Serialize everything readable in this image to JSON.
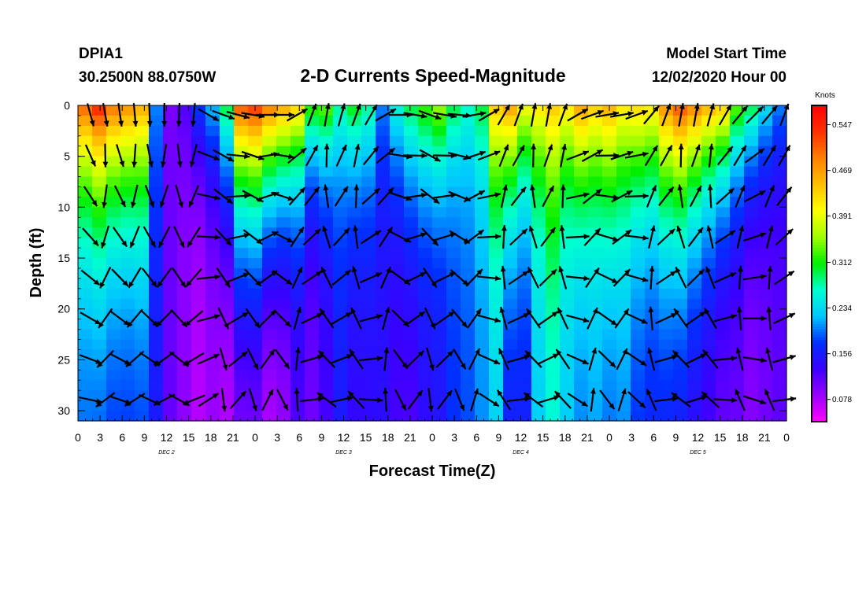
{
  "header": {
    "station_id": "DPIA1",
    "station_coords": "30.2500N 88.0750W",
    "model_start_label": "Model Start Time",
    "model_start_value": "12/02/2020 Hour 00"
  },
  "chart_data": {
    "type": "heatmap",
    "title": "2-D Currents Speed-Magnitude",
    "xlabel": "Forecast Time(Z)",
    "ylabel": "Depth (ft)",
    "x_range_hours": [
      0,
      96
    ],
    "y_range_ft": [
      0,
      31
    ],
    "x_tick_labels": [
      "0",
      "3",
      "6",
      "9",
      "12",
      "15",
      "18",
      "21",
      "0",
      "3",
      "6",
      "9",
      "12",
      "15",
      "18",
      "21",
      "0",
      "3",
      "6",
      "9",
      "12",
      "15",
      "18",
      "21",
      "0",
      "3",
      "6",
      "9",
      "12",
      "15",
      "18",
      "21",
      "0"
    ],
    "y_ticks": [
      0,
      5,
      10,
      15,
      20,
      25,
      30
    ],
    "day_labels": [
      {
        "label": "DEC 2",
        "hour": 12
      },
      {
        "label": "DEC 3",
        "hour": 36
      },
      {
        "label": "DEC 4",
        "hour": 60
      },
      {
        "label": "DEC 5",
        "hour": 84
      }
    ],
    "colorbar": {
      "unit": "Knots",
      "range": [
        0.04,
        0.58
      ],
      "tick_values": [
        0.547,
        0.469,
        0.391,
        0.312,
        0.234,
        0.156,
        0.078
      ],
      "tick_labels": [
        "0.547",
        "0.469",
        "0.391",
        "0.312",
        "0.234",
        "0.156",
        "0.078"
      ]
    },
    "colors": {
      "stops": [
        "#ff00ff",
        "#9a00ff",
        "#3a00ff",
        "#0030ff",
        "#00c8ff",
        "#00ffd0",
        "#00f000",
        "#a0ff00",
        "#ffff00",
        "#ffc000",
        "#ff8000",
        "#ff3000",
        "#ff0000"
      ]
    },
    "speed_profile": {
      "surface_knots": [
        0.51,
        0.55,
        0.5,
        0.48,
        0.46,
        0.2,
        0.1,
        0.12,
        0.18,
        0.22,
        0.3,
        0.52,
        0.54,
        0.5,
        0.47,
        0.44,
        0.33,
        0.34,
        0.28,
        0.31,
        0.28,
        0.2,
        0.26,
        0.3,
        0.33,
        0.36,
        0.3,
        0.27,
        0.3,
        0.44,
        0.47,
        0.4,
        0.42,
        0.44,
        0.42,
        0.47,
        0.44,
        0.46,
        0.42,
        0.43,
        0.42,
        0.48,
        0.52,
        0.49,
        0.46,
        0.44,
        0.34,
        0.3,
        0.24,
        0.2
      ],
      "bottom_knots": [
        0.18,
        0.17,
        0.16,
        0.16,
        0.16,
        0.15,
        0.11,
        0.09,
        0.07,
        0.08,
        0.06,
        0.07,
        0.07,
        0.05,
        0.07,
        0.11,
        0.1,
        0.12,
        0.15,
        0.13,
        0.13,
        0.14,
        0.12,
        0.11,
        0.13,
        0.14,
        0.17,
        0.18,
        0.2,
        0.22,
        0.14,
        0.15,
        0.22,
        0.25,
        0.22,
        0.19,
        0.2,
        0.18,
        0.19,
        0.16,
        0.15,
        0.14,
        0.13,
        0.12,
        0.11,
        0.1,
        0.1,
        0.09,
        0.1,
        0.11
      ],
      "decay_depth_ft": [
        10,
        11,
        11,
        11,
        12,
        12,
        8,
        8,
        8,
        9,
        11,
        12,
        12,
        11,
        10,
        9,
        8,
        8,
        9,
        9,
        10,
        8,
        9,
        11,
        10,
        9,
        8,
        9,
        9,
        10,
        11,
        10,
        9,
        10,
        9,
        10,
        10,
        11,
        11,
        11,
        11,
        12,
        12,
        11,
        10,
        9,
        9,
        8,
        8,
        8
      ]
    },
    "vectors": {
      "hours": [
        0,
        2,
        4,
        6,
        8,
        10,
        12,
        14,
        16,
        18,
        20,
        22,
        24,
        26,
        28,
        30,
        32,
        34,
        36,
        38,
        40,
        42,
        44,
        46,
        48,
        50,
        52,
        54,
        56,
        58,
        60,
        62,
        64,
        66,
        68,
        70,
        72,
        74,
        76,
        78,
        80,
        82,
        84,
        86,
        88,
        90,
        92,
        94
      ],
      "depths_ft": [
        0,
        4,
        8,
        12,
        16,
        20,
        24,
        28
      ],
      "direction_deg": [
        165,
        170,
        172,
        175,
        178,
        180,
        182,
        185,
        120,
        110,
        105,
        100,
        90,
        90,
        60,
        20,
        10,
        15,
        20,
        30,
        60,
        90,
        100,
        110,
        100,
        95,
        80,
        60,
        30,
        20,
        10,
        10,
        20,
        60,
        70,
        80,
        80,
        70,
        40,
        20,
        10,
        10,
        15,
        30,
        40,
        45,
        40,
        20
      ],
      "depth_turn_deg": 18
    }
  }
}
